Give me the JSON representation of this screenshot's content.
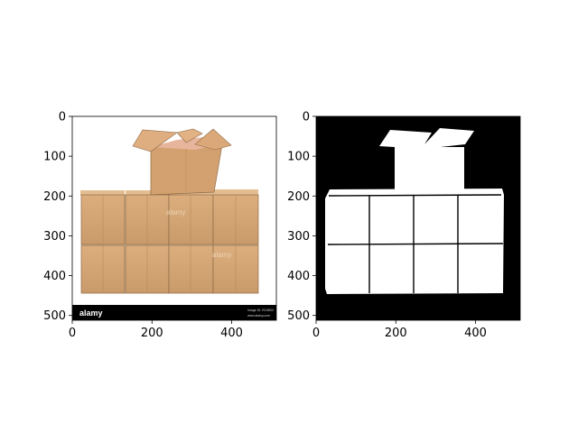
{
  "chart_data": [
    {
      "type": "image",
      "panel": "left",
      "content": "photograph of stacked cardboard boxes",
      "xlim": [
        0,
        512
      ],
      "ylim": [
        512,
        0
      ],
      "xticks": [
        0,
        200,
        400
      ],
      "yticks": [
        0,
        100,
        200,
        300,
        400,
        500
      ],
      "watermark": {
        "brand": "alamy",
        "small_text": [
          "Image ID: RC5B9J",
          "www.alamy.com"
        ]
      }
    },
    {
      "type": "image",
      "panel": "right",
      "content": "binary segmentation mask of the boxes",
      "xlim": [
        0,
        512
      ],
      "ylim": [
        512,
        0
      ],
      "xticks": [
        0,
        200,
        400
      ],
      "yticks": [
        0,
        100,
        200,
        300,
        400,
        500
      ]
    }
  ],
  "colors": {
    "box_face": "#d9a877",
    "box_side": "#c59466",
    "box_edge": "#8e6a46",
    "lid_inner": "#e8b0a0",
    "mask_bg": "#000000",
    "mask_fg": "#ffffff",
    "watermark_bar": "#000000"
  }
}
